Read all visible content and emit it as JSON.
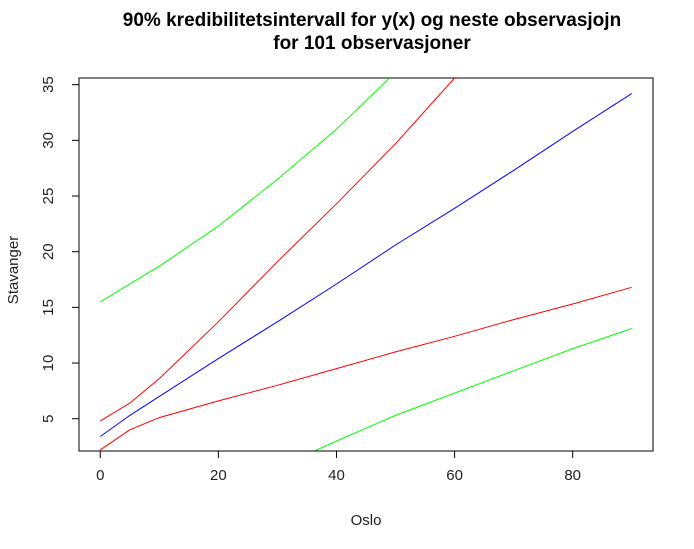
{
  "chart_data": {
    "type": "line",
    "title_lines": [
      "90% kredibilitetsintervall for y(x) og neste observasjojn",
      "for 101 observasjoner"
    ],
    "xlabel": "Oslo",
    "ylabel": "Stavanger",
    "xlim": [
      -3.6,
      93.6
    ],
    "ylim": [
      2.1,
      35.6
    ],
    "xticks": [
      0,
      20,
      40,
      60,
      80
    ],
    "yticks": [
      5,
      10,
      15,
      20,
      25,
      30,
      35
    ],
    "grid": false,
    "series": [
      {
        "name": "estimate",
        "color": "#0000ff",
        "x": [
          0,
          5,
          10,
          20,
          30,
          40,
          50,
          60,
          70,
          80,
          90
        ],
        "y": [
          3.4,
          5.3,
          7.0,
          10.4,
          13.7,
          17.1,
          20.6,
          23.9,
          27.3,
          30.8,
          34.2
        ]
      },
      {
        "name": "credible-upper",
        "color": "#ff0000",
        "x": [
          0,
          5,
          10,
          20,
          30,
          40,
          50,
          60
        ],
        "y": [
          4.8,
          6.4,
          8.6,
          13.7,
          19.1,
          24.3,
          29.7,
          35.6
        ]
      },
      {
        "name": "credible-lower",
        "color": "#ff0000",
        "x": [
          0,
          5,
          10,
          20,
          30,
          40,
          50,
          60,
          70,
          80,
          90
        ],
        "y": [
          2.2,
          4.0,
          5.1,
          6.6,
          8.0,
          9.5,
          11.0,
          12.4,
          13.9,
          15.3,
          16.8
        ]
      },
      {
        "name": "prediction-upper",
        "color": "#00ff00",
        "x": [
          0,
          10,
          20,
          30,
          40,
          49
        ],
        "y": [
          15.5,
          18.7,
          22.3,
          26.5,
          31.0,
          35.6
        ]
      },
      {
        "name": "prediction-lower",
        "color": "#00ff00",
        "x": [
          36.3,
          40,
          50,
          60,
          70,
          80,
          90
        ],
        "y": [
          2.1,
          3.0,
          5.3,
          7.3,
          9.3,
          11.3,
          13.1
        ]
      }
    ]
  }
}
